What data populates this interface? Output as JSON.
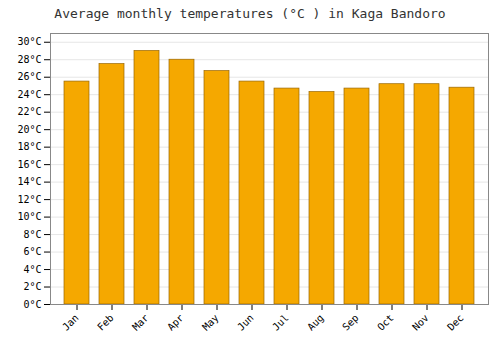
{
  "chart_data": {
    "type": "bar",
    "title": "Average monthly temperatures (°C ) in Kaga Bandoro",
    "categories": [
      "Jan",
      "Feb",
      "Mar",
      "Apr",
      "May",
      "Jun",
      "Jul",
      "Aug",
      "Sep",
      "Oct",
      "Nov",
      "Dec"
    ],
    "values": [
      25.5,
      27.5,
      29.0,
      28.0,
      26.7,
      25.5,
      24.7,
      24.3,
      24.7,
      25.2,
      25.2,
      24.8
    ],
    "color": "#F5A800",
    "ylim": [
      0,
      31
    ],
    "yticks": [
      {
        "value": 0,
        "label": "0°C"
      },
      {
        "value": 2,
        "label": "2°C"
      },
      {
        "value": 4,
        "label": "4°C"
      },
      {
        "value": 6,
        "label": "6°C"
      },
      {
        "value": 8,
        "label": "8°C"
      },
      {
        "value": 10,
        "label": "10°C"
      },
      {
        "value": 12,
        "label": "12°C"
      },
      {
        "value": 14,
        "label": "14°C"
      },
      {
        "value": 16,
        "label": "16°C"
      },
      {
        "value": 18,
        "label": "18°C"
      },
      {
        "value": 20,
        "label": "20°C"
      },
      {
        "value": 22,
        "label": "22°C"
      },
      {
        "value": 24,
        "label": "24°C"
      },
      {
        "value": 26,
        "label": "26°C"
      },
      {
        "value": 28,
        "label": "28°C"
      },
      {
        "value": 30,
        "label": "30°C"
      }
    ],
    "grid": true
  }
}
